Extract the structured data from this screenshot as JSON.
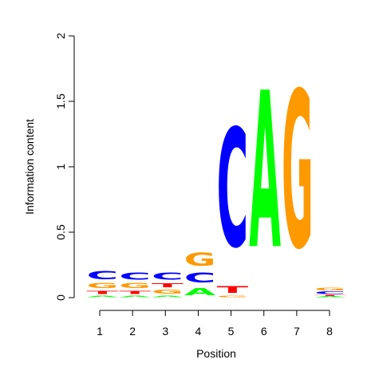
{
  "chart_data": {
    "type": "sequence-logo",
    "xlabel": "Position",
    "ylabel": "Information content",
    "ylim": [
      0,
      2
    ],
    "yticks": [
      {
        "value": 0,
        "label": "0"
      },
      {
        "value": 0.5,
        "label": "0.5"
      },
      {
        "value": 1,
        "label": "1"
      },
      {
        "value": 1.5,
        "label": "1.5"
      },
      {
        "value": 2,
        "label": "2"
      }
    ],
    "positions": [
      {
        "label": "1",
        "letters": [
          {
            "base": "A",
            "bits": 0.02
          },
          {
            "base": "T",
            "bits": 0.04
          },
          {
            "base": "G",
            "bits": 0.06
          },
          {
            "base": "C",
            "bits": 0.1
          }
        ]
      },
      {
        "label": "2",
        "letters": [
          {
            "base": "A",
            "bits": 0.02
          },
          {
            "base": "T",
            "bits": 0.04
          },
          {
            "base": "G",
            "bits": 0.06
          },
          {
            "base": "C",
            "bits": 0.09
          }
        ]
      },
      {
        "label": "3",
        "letters": [
          {
            "base": "A",
            "bits": 0.02
          },
          {
            "base": "G",
            "bits": 0.05
          },
          {
            "base": "T",
            "bits": 0.05
          },
          {
            "base": "C",
            "bits": 0.09
          }
        ]
      },
      {
        "label": "4",
        "letters": [
          {
            "base": "A",
            "bits": 0.09
          },
          {
            "base": "C",
            "bits": 0.12
          },
          {
            "base": "G",
            "bits": 0.16
          }
        ]
      },
      {
        "label": "5",
        "letters": [
          {
            "base": "G",
            "bits": 0.02
          },
          {
            "base": "T",
            "bits": 0.08
          },
          {
            "base": "C",
            "bits": 1.45
          }
        ]
      },
      {
        "label": "6",
        "letters": [
          {
            "base": "A",
            "bits": 1.92
          }
        ]
      },
      {
        "label": "7",
        "letters": [
          {
            "base": "G",
            "bits": 1.92
          }
        ]
      },
      {
        "label": "8",
        "letters": [
          {
            "base": "A",
            "bits": 0.01
          },
          {
            "base": "T",
            "bits": 0.01
          },
          {
            "base": "C",
            "bits": 0.03
          },
          {
            "base": "G",
            "bits": 0.03
          }
        ]
      }
    ],
    "colors": {
      "A": "#00ff00",
      "C": "#0000ff",
      "G": "#ff9900",
      "T": "#ff0000"
    }
  }
}
